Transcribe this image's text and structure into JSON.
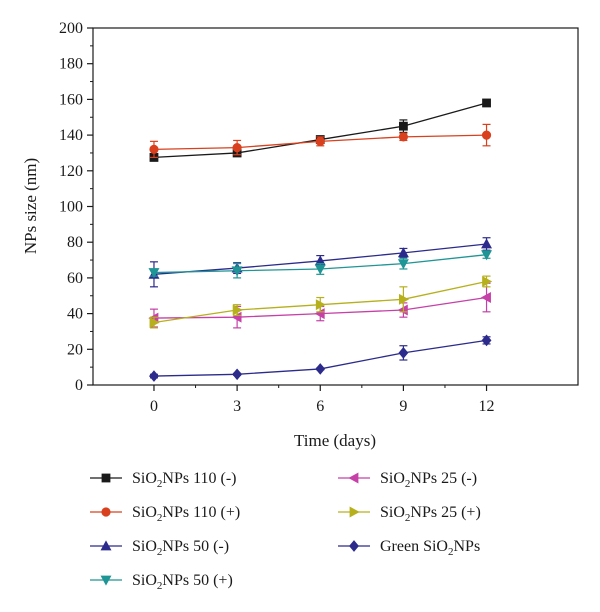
{
  "chart_data": {
    "type": "line",
    "xlabel": "Time (days)",
    "ylabel": "NPs size (nm)",
    "x": [
      0,
      3,
      6,
      9,
      12
    ],
    "xlim": [
      -2.2,
      15.3
    ],
    "ylim": [
      0,
      200
    ],
    "xticks": [
      "0",
      "3",
      "6",
      "9",
      "12"
    ],
    "yticks": [
      "0",
      "20",
      "40",
      "60",
      "80",
      "100",
      "120",
      "140",
      "160",
      "180",
      "200"
    ],
    "grid": false,
    "legend_position": "below",
    "series": [
      {
        "name_main": "SiO",
        "name_sub": "2",
        "name_rest": "NPs 110 (-)",
        "color": "#1a1a1a",
        "marker": "square",
        "values": [
          127.5,
          130,
          137.5,
          145,
          158
        ],
        "errors": [
          2,
          2,
          2,
          3.5,
          1
        ]
      },
      {
        "name_main": "SiO",
        "name_sub": "2",
        "name_rest": "NPs 110 (+)",
        "color": "#d9411e",
        "marker": "circle",
        "values": [
          132,
          133,
          136.5,
          139,
          140
        ],
        "errors": [
          4.5,
          4,
          2.5,
          2,
          6
        ]
      },
      {
        "name_main": "SiO",
        "name_sub": "2",
        "name_rest": "NPs 50 (-)",
        "color": "#2c2b8c",
        "marker": "triangle-up",
        "values": [
          62,
          65.5,
          69.5,
          74,
          79
        ],
        "errors": [
          7,
          3,
          3,
          2.5,
          3.5
        ]
      },
      {
        "name_main": "SiO",
        "name_sub": "2",
        "name_rest": "NPs 50 (+)",
        "color": "#1f9595",
        "marker": "triangle-down",
        "values": [
          63,
          64,
          65,
          68,
          73
        ],
        "errors": [
          2,
          4,
          3,
          3,
          2
        ]
      },
      {
        "name_main": "SiO",
        "name_sub": "2",
        "name_rest": "NPs 25 (-)",
        "color": "#c541a8",
        "marker": "triangle-left",
        "values": [
          37.5,
          38,
          40,
          42,
          49
        ],
        "errors": [
          5,
          6,
          4,
          4,
          8
        ]
      },
      {
        "name_main": "SiO",
        "name_sub": "2",
        "name_rest": "NPs 25 (+)",
        "color": "#b6b01c",
        "marker": "triangle-right",
        "values": [
          35,
          42,
          45,
          48,
          58
        ],
        "errors": [
          3,
          3,
          4,
          7,
          3
        ]
      },
      {
        "name_main": "Green SiO",
        "name_sub": "2",
        "name_rest": "NPs",
        "color": "#2c2b8c",
        "marker": "diamond",
        "values": [
          5,
          6,
          9,
          18,
          25
        ],
        "errors": [
          1,
          0.5,
          0.5,
          4,
          2
        ]
      }
    ]
  }
}
